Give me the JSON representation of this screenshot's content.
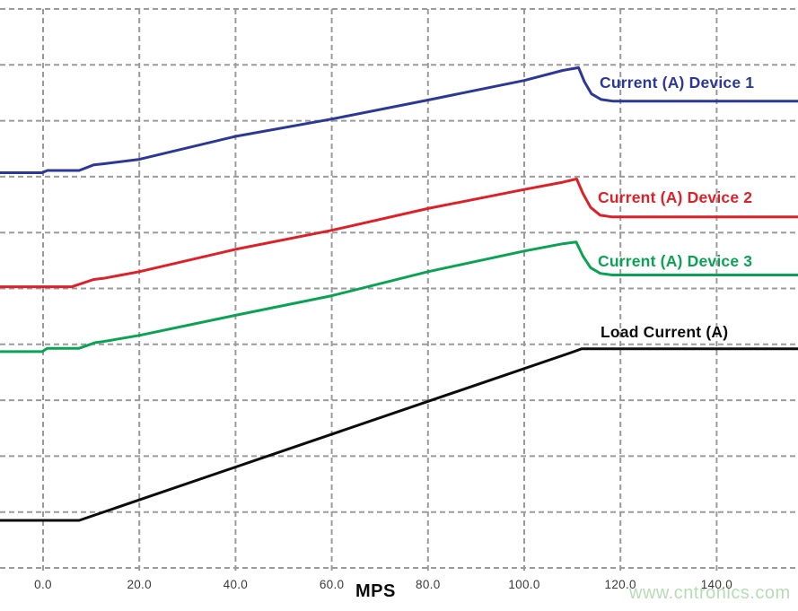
{
  "watermark": {
    "text": "www.cntronics.com",
    "color": "#b7dcb4"
  },
  "chart_data": {
    "type": "line",
    "title": "",
    "xlabel": "MPS",
    "ylabel": "",
    "x_ticks": [
      "0.0",
      "20.0",
      "40.0",
      "60.0",
      "80.0",
      "100.0",
      "120.0",
      "140.0"
    ],
    "x_tick_values": [
      0,
      20,
      40,
      60,
      80,
      100,
      120,
      140
    ],
    "x_range": [
      -9,
      157
    ],
    "y_axis_note": "no y tick labels shown; y given in grid divisions above bottom axis (0-10)",
    "y_divisions": 10,
    "grid": "dashed",
    "grid_color": "#9b9b9b",
    "legend_position": "labels next to lines, right side",
    "series": [
      {
        "name": "device1",
        "label": "Current (A) Device 1",
        "color": "#2b3896",
        "points": [
          [
            -9,
            7.07
          ],
          [
            -0.2,
            7.07
          ],
          [
            0.9,
            7.11
          ],
          [
            7.5,
            7.11
          ],
          [
            10.5,
            7.21
          ],
          [
            12.5,
            7.23
          ],
          [
            20,
            7.31
          ],
          [
            40,
            7.72
          ],
          [
            60,
            8.03
          ],
          [
            80,
            8.37
          ],
          [
            100,
            8.72
          ],
          [
            108,
            8.9
          ],
          [
            111.3,
            8.95
          ],
          [
            112.5,
            8.7
          ],
          [
            114,
            8.48
          ],
          [
            116,
            8.38
          ],
          [
            118.5,
            8.35
          ],
          [
            157,
            8.35
          ]
        ]
      },
      {
        "name": "device2",
        "label": "Current (A) Device 2",
        "color": "#de2028",
        "points": [
          [
            -9,
            5.03
          ],
          [
            6,
            5.03
          ],
          [
            10.5,
            5.16
          ],
          [
            12.5,
            5.18
          ],
          [
            20,
            5.3
          ],
          [
            40,
            5.7
          ],
          [
            60,
            6.04
          ],
          [
            80,
            6.43
          ],
          [
            100,
            6.77
          ],
          [
            108,
            6.9
          ],
          [
            110.9,
            6.96
          ],
          [
            112.2,
            6.7
          ],
          [
            113.8,
            6.45
          ],
          [
            115.8,
            6.31
          ],
          [
            118.3,
            6.28
          ],
          [
            157,
            6.28
          ]
        ]
      },
      {
        "name": "device3",
        "label": "Current (A) Device 3",
        "color": "#0aa353",
        "points": [
          [
            -9,
            3.87
          ],
          [
            -0.2,
            3.87
          ],
          [
            0.9,
            3.93
          ],
          [
            7.5,
            3.93
          ],
          [
            10.8,
            4.03
          ],
          [
            12.5,
            4.05
          ],
          [
            20,
            4.16
          ],
          [
            40,
            4.52
          ],
          [
            60,
            4.87
          ],
          [
            80,
            5.3
          ],
          [
            100,
            5.67
          ],
          [
            108,
            5.8
          ],
          [
            110.8,
            5.83
          ],
          [
            112.2,
            5.58
          ],
          [
            113.8,
            5.37
          ],
          [
            115.8,
            5.27
          ],
          [
            118.3,
            5.24
          ],
          [
            157,
            5.24
          ]
        ]
      },
      {
        "name": "load",
        "label": "Load Current (A)",
        "color": "#0c0c0c",
        "points": [
          [
            -9,
            0.85
          ],
          [
            7.5,
            0.85
          ],
          [
            110,
            3.86
          ],
          [
            111.9,
            3.92
          ],
          [
            157,
            3.92
          ]
        ]
      }
    ]
  }
}
